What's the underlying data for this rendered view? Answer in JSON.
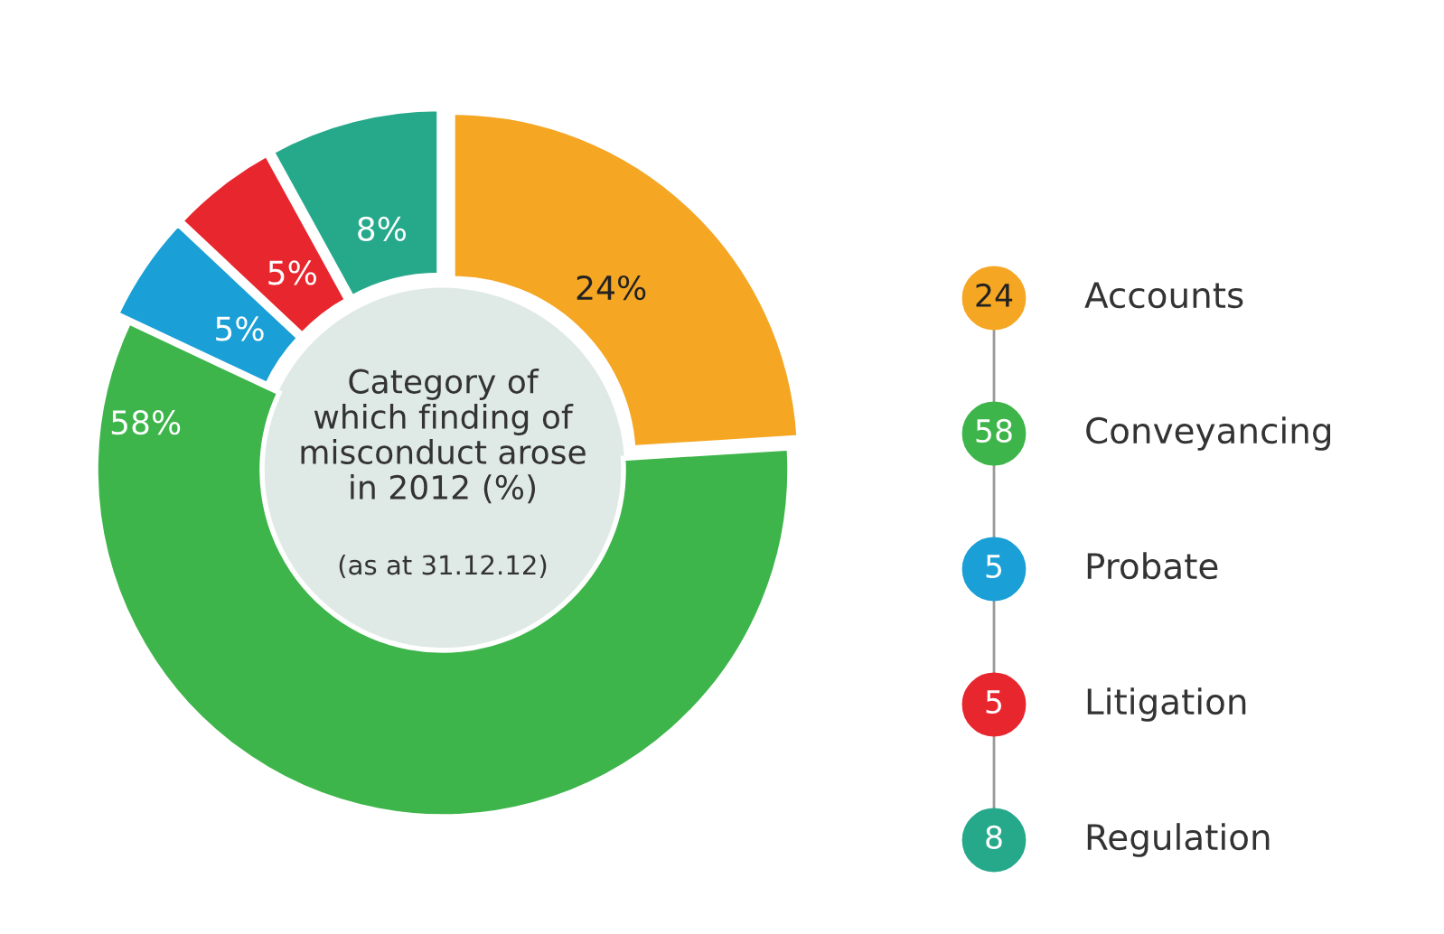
{
  "chart_data": {
    "type": "donut",
    "title": "Category of\nwhich finding of\nmisconduct arose\nin 2012 (%)",
    "subtitle": "(as at 31.12.12)",
    "categories": [
      "Accounts",
      "Conveyancing",
      "Probate",
      "Litigation",
      "Regulation"
    ],
    "values": [
      24,
      58,
      5,
      5,
      8
    ],
    "colors": [
      "#f5a623",
      "#3db54a",
      "#1a9fd6",
      "#e8262e",
      "#26a98b"
    ],
    "value_labels": [
      "24%",
      "58%",
      "5%",
      "5%",
      "8%"
    ],
    "annotations": [
      "24",
      "58",
      "5",
      "5",
      "8"
    ],
    "legend": "right"
  }
}
